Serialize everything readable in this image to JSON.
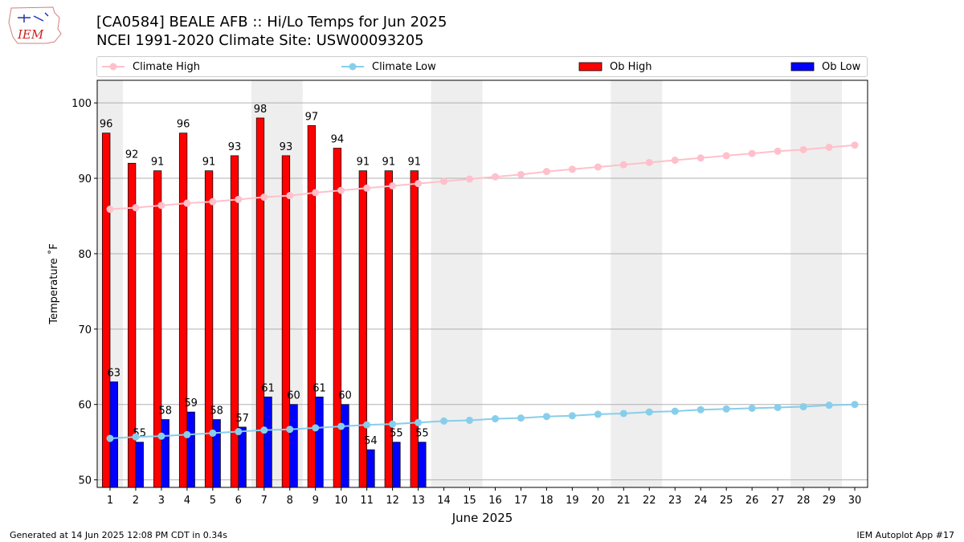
{
  "header": {
    "logo_text": "IEM",
    "title_line1": "[CA0584] BEALE AFB :: Hi/Lo Temps for Jun 2025",
    "title_line2": "NCEI 1991-2020 Climate Site: USW00093205"
  },
  "legend": {
    "items": [
      {
        "label": "Climate High",
        "kind": "line",
        "color": "#ffc0cb"
      },
      {
        "label": "Climate Low",
        "kind": "line",
        "color": "#87ceeb"
      },
      {
        "label": "Ob High",
        "kind": "bar",
        "color": "#ff0000"
      },
      {
        "label": "Ob Low",
        "kind": "bar",
        "color": "#0000ff"
      }
    ],
    "placement": "top, horizontal above plot"
  },
  "footer": {
    "left": "Generated at 14 Jun 2025 12:08 PM CDT in 0.34s",
    "right": "IEM Autoplot App #17"
  },
  "chart_data": {
    "type": "bar",
    "xlabel": "June 2025",
    "ylabel": "Temperature ˚F",
    "ylim": [
      49,
      103
    ],
    "yticks": [
      50,
      60,
      70,
      80,
      90,
      100
    ],
    "grid": "horizontal",
    "days": [
      1,
      2,
      3,
      4,
      5,
      6,
      7,
      8,
      9,
      10,
      11,
      12,
      13,
      14,
      15,
      16,
      17,
      18,
      19,
      20,
      21,
      22,
      23,
      24,
      25,
      26,
      27,
      28,
      29,
      30
    ],
    "weekend_shading": [
      [
        1,
        1
      ],
      [
        7,
        8
      ],
      [
        14,
        15
      ],
      [
        21,
        22
      ],
      [
        28,
        29
      ]
    ],
    "series": [
      {
        "name": "Ob High",
        "kind": "bar",
        "color": "#ff0000",
        "values": [
          96,
          92,
          91,
          96,
          91,
          93,
          98,
          93,
          97,
          94,
          91,
          91,
          91
        ]
      },
      {
        "name": "Ob Low",
        "kind": "bar",
        "color": "#0000ff",
        "values": [
          63,
          55,
          58,
          59,
          58,
          57,
          61,
          60,
          61,
          60,
          54,
          55,
          55
        ]
      },
      {
        "name": "Climate High",
        "kind": "line",
        "color": "#ffc0cb",
        "values": [
          85.9,
          86.1,
          86.4,
          86.7,
          86.9,
          87.2,
          87.5,
          87.7,
          88.1,
          88.4,
          88.7,
          89.0,
          89.3,
          89.6,
          89.9,
          90.2,
          90.5,
          90.9,
          91.2,
          91.5,
          91.8,
          92.1,
          92.4,
          92.7,
          93.0,
          93.3,
          93.6,
          93.8,
          94.1,
          94.4
        ]
      },
      {
        "name": "Climate Low",
        "kind": "line",
        "color": "#87ceeb",
        "values": [
          55.5,
          55.7,
          55.8,
          56.0,
          56.2,
          56.4,
          56.6,
          56.7,
          56.9,
          57.1,
          57.3,
          57.4,
          57.6,
          57.8,
          57.9,
          58.1,
          58.2,
          58.4,
          58.5,
          58.7,
          58.8,
          59.0,
          59.1,
          59.3,
          59.4,
          59.5,
          59.6,
          59.7,
          59.9,
          60.0
        ]
      }
    ]
  }
}
